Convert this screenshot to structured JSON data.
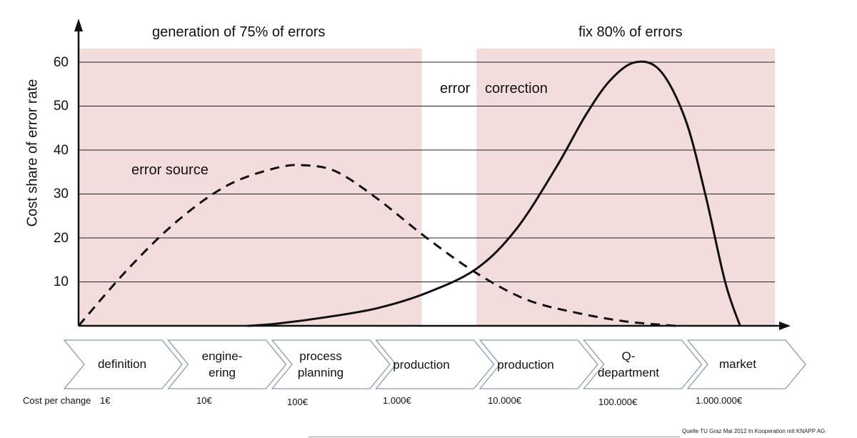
{
  "chart_data": {
    "type": "line",
    "title": "",
    "ylabel": "Cost share of error rate",
    "xlabel": "",
    "ylim": [
      0,
      60
    ],
    "yticks": [
      10,
      20,
      30,
      40,
      50,
      60
    ],
    "grid": true,
    "categories": [
      "definition",
      "engine-ering",
      "process planning",
      "production",
      "production",
      "Q-department",
      "market"
    ],
    "cost_per_change": [
      "1€",
      "10€",
      "100€",
      "1.000€",
      "10.000€",
      "100.000€",
      "1.000.000€"
    ],
    "series": [
      {
        "name": "error source",
        "style": "dashed",
        "x": [
          0,
          0.5,
          1,
          1.5,
          2,
          2.3,
          2.6,
          3,
          3.5,
          4,
          4.5,
          5,
          5.5,
          6
        ],
        "y": [
          0,
          13,
          24,
          32,
          36,
          36.5,
          35,
          29,
          20,
          12,
          6,
          3,
          1,
          0
        ]
      },
      {
        "name": "error correction",
        "style": "solid",
        "x": [
          1.7,
          2,
          2.5,
          3,
          3.5,
          4,
          4.4,
          4.8,
          5.1,
          5.35,
          5.6,
          5.85,
          6.1,
          6.3,
          6.5,
          6.65
        ],
        "y": [
          0,
          0.5,
          2,
          4,
          7.5,
          13,
          22,
          36,
          48,
          56,
          60,
          58,
          47,
          30,
          10,
          0
        ]
      }
    ],
    "labels": {
      "generation": "generation of 75% of errors",
      "fix": "fix 80% of errors",
      "error_correction_word1": "error",
      "error_correction_word2": "correction",
      "error_source": "error source"
    },
    "shaded_regions": [
      {
        "label": "generation of 75% of errors",
        "from_stage": 0,
        "to_stage": 3.45
      },
      {
        "label": "fix 80% of errors",
        "from_stage": 4.0,
        "to_stage": 7.0
      }
    ],
    "shade_color": "#f3dcdc"
  },
  "cost_label": "Cost per change",
  "source_note": "Quelle TU Graz Mai 2012 In Kooperation mit KNAPP AG",
  "stage_lines": [
    [
      "definition"
    ],
    [
      "engine-",
      "ering"
    ],
    [
      "process",
      "planning"
    ],
    [
      "production"
    ],
    [
      "production"
    ],
    [
      "Q-",
      "department"
    ],
    [
      "market"
    ]
  ]
}
